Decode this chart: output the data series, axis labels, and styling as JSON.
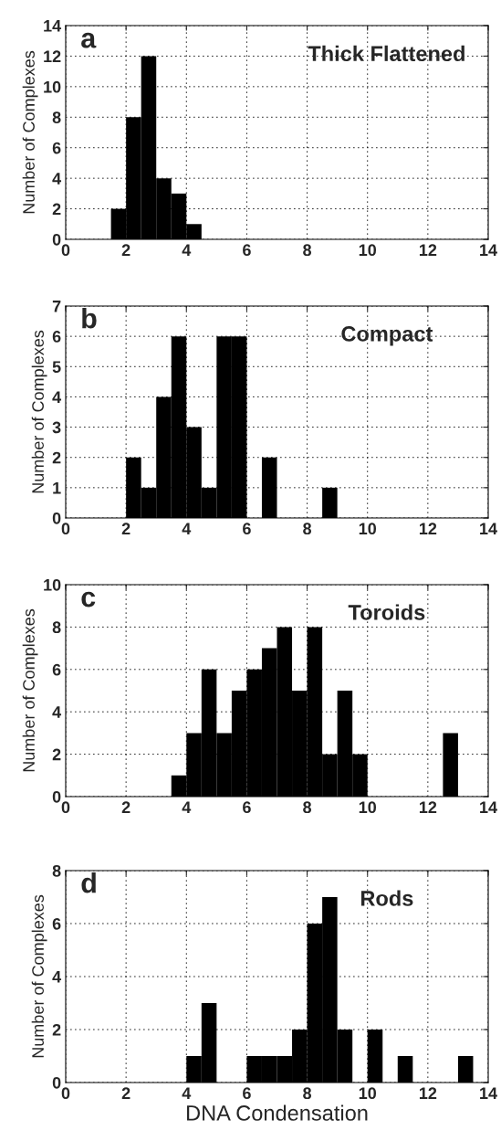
{
  "chart_data": [
    {
      "type": "histogram",
      "annotations": [
        "a",
        "Thick Flattened"
      ],
      "ylabel": "Number of Complexes",
      "bins": [
        1.5,
        2,
        2.5,
        3,
        3.5,
        4,
        4.5
      ],
      "values": [
        2,
        8,
        12,
        4,
        3,
        1
      ],
      "color": "#000000",
      "xlim": [
        0,
        14
      ],
      "xticks": [
        0,
        2,
        4,
        6,
        8,
        10,
        12,
        14
      ],
      "ylim": [
        0,
        14
      ],
      "yticks": [
        0,
        2,
        4,
        6,
        8,
        10,
        12,
        14
      ],
      "grid": true
    },
    {
      "type": "histogram",
      "annotations": [
        "b",
        "Compact"
      ],
      "ylabel": "Number of Complexes",
      "bins": [
        2,
        2.5,
        3,
        3.5,
        4,
        4.5,
        5,
        5.5,
        6,
        6.5,
        7,
        7.5,
        8,
        8.5,
        9
      ],
      "values": [
        2,
        1,
        4,
        6,
        3,
        1,
        6,
        6,
        0,
        2,
        0,
        0,
        0,
        1
      ],
      "color": "#000000",
      "xlim": [
        0,
        14
      ],
      "xticks": [
        0,
        2,
        4,
        6,
        8,
        10,
        12,
        14
      ],
      "ylim": [
        0,
        7
      ],
      "yticks": [
        0,
        1,
        2,
        3,
        4,
        5,
        6,
        7
      ],
      "grid": true
    },
    {
      "type": "histogram",
      "annotations": [
        "c",
        "Toroids"
      ],
      "ylabel": "Number of Complexes",
      "bins": [
        3.5,
        4,
        4.5,
        5,
        5.5,
        6,
        6.5,
        7,
        7.5,
        8,
        8.5,
        9,
        9.5,
        10,
        10.5,
        11,
        11.5,
        12,
        12.5,
        13
      ],
      "values": [
        1,
        3,
        6,
        3,
        5,
        6,
        7,
        8,
        5,
        8,
        2,
        5,
        2,
        0,
        0,
        0,
        0,
        0,
        3
      ],
      "color": "#000000",
      "xlim": [
        0,
        14
      ],
      "xticks": [
        0,
        2,
        4,
        6,
        8,
        10,
        12,
        14
      ],
      "ylim": [
        0,
        10
      ],
      "yticks": [
        0,
        2,
        4,
        6,
        8,
        10
      ],
      "grid": true
    },
    {
      "type": "histogram",
      "annotations": [
        "d",
        "Rods"
      ],
      "xlabel": "DNA Condensation",
      "ylabel": "Number of Complexes",
      "bins": [
        4,
        4.5,
        5,
        5.5,
        6,
        6.5,
        7,
        7.5,
        8,
        8.5,
        9,
        9.5,
        10,
        10.5,
        11,
        11.5,
        12,
        12.5,
        13,
        13.5
      ],
      "values": [
        1,
        3,
        0,
        0,
        1,
        1,
        1,
        2,
        6,
        7,
        2,
        0,
        2,
        0,
        1,
        0,
        0,
        0,
        1
      ],
      "color": "#000000",
      "xlim": [
        0,
        14
      ],
      "xticks": [
        0,
        2,
        4,
        6,
        8,
        10,
        12,
        14
      ],
      "ylim": [
        0,
        8
      ],
      "yticks": [
        0,
        2,
        4,
        6,
        8
      ],
      "grid": true
    }
  ]
}
